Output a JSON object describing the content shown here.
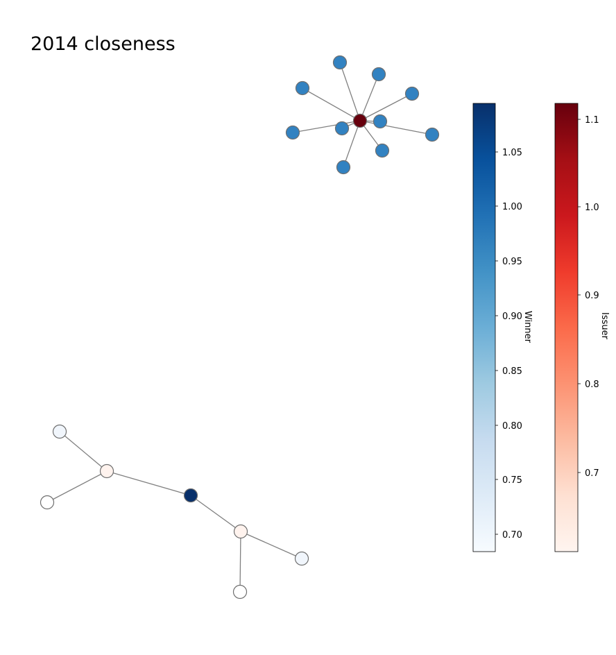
{
  "title": "2014 closeness",
  "colorbars": {
    "winner": {
      "label": "Winner",
      "ticks": [
        "0.70",
        "0.75",
        "0.80",
        "0.85",
        "0.90",
        "0.95",
        "1.00",
        "1.05"
      ],
      "colors": [
        "#f7fbff",
        "#deebf7",
        "#c6dbef",
        "#9ecae1",
        "#6baed6",
        "#4292c6",
        "#2171b5",
        "#08519c",
        "#08306b"
      ]
    },
    "issuer": {
      "label": "Issuer",
      "ticks": [
        "0.7",
        "0.8",
        "0.9",
        "1.0",
        "1.1"
      ],
      "colors": [
        "#fff5f0",
        "#fee0d2",
        "#fcbba1",
        "#fc9272",
        "#fb6a4a",
        "#ef3b2c",
        "#cb181d",
        "#a50f15",
        "#67000d"
      ]
    }
  },
  "graph": {
    "edge_color": "#808080",
    "node_stroke": "#6e6e6e",
    "node_colors": {
      "hub_issuer": "#67000d",
      "leaf_winner": "#3282c1",
      "winner_dark": "#08306b",
      "issuer_light": "#fff3ee",
      "winner_light": "#f1f6fc",
      "white": "#ffffff"
    }
  }
}
